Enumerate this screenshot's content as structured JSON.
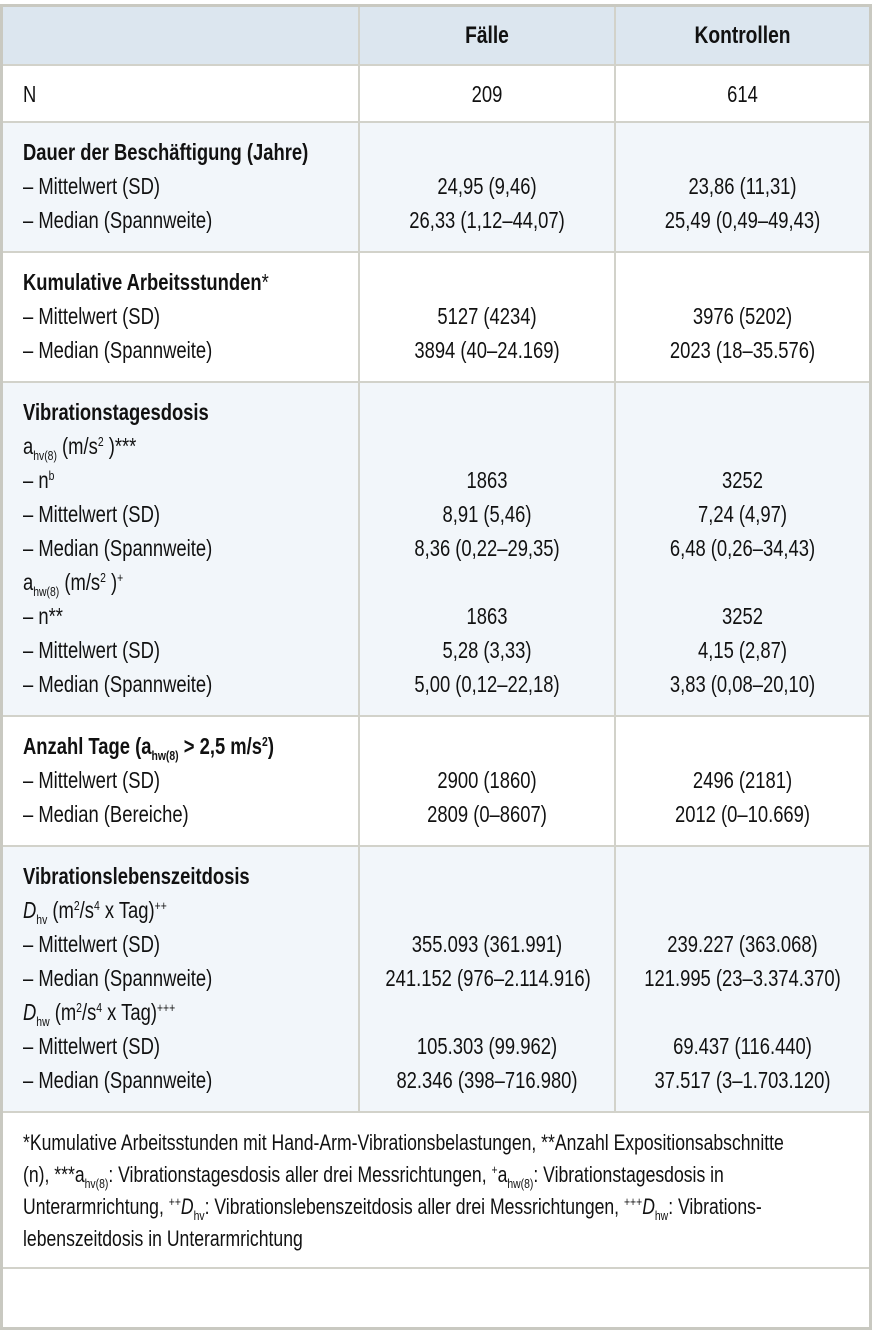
{
  "table": {
    "header": {
      "col_label": "",
      "col_cases": "Fälle",
      "col_controls": "Kontrollen"
    },
    "n_row": {
      "label": "N",
      "cases": "209",
      "controls": "614"
    },
    "sections": {
      "duration": {
        "title": "Dauer der Beschäftigung (Jahre)",
        "rows": [
          {
            "label": "– Mittelwert (SD)",
            "cases": "24,95 (9,46)",
            "controls": "23,86 (11,31)"
          },
          {
            "label": "– Median (Spannweite)",
            "cases": "26,33 (1,12–44,07)",
            "controls": "25,49 (0,49–49,43)"
          }
        ]
      },
      "hours": {
        "title": "Kumulative Arbeitsstunden",
        "title_mark": "*",
        "rows": [
          {
            "label": "– Mittelwert (SD)",
            "cases": "5127 (4234)",
            "controls": "3976 (5202)"
          },
          {
            "label": "– Median (Spannweite)",
            "cases": "3894 (40–24.169)",
            "controls": "2023 (18–35.576)"
          }
        ]
      },
      "daily_dose": {
        "title": "Vibrationstagesdosis",
        "ahv": {
          "symbol": "a",
          "sub": "hv(8)",
          "unit_pre": " (m/s",
          "unit_sup": "2",
          "unit_post": " )***",
          "rows": [
            {
              "label": "– n",
              "label_sup": "b",
              "cases": "1863",
              "controls": "3252"
            },
            {
              "label": "– Mittelwert (SD)",
              "cases": "8,91 (5,46)",
              "controls": "7,24 (4,97)"
            },
            {
              "label": "– Median (Spannweite)",
              "cases": "8,36 (0,22–29,35)",
              "controls": "6,48 (0,26–34,43)"
            }
          ]
        },
        "ahw": {
          "symbol": "a",
          "sub": "hw(8)",
          "unit_pre": " (m/s",
          "unit_sup": "2",
          "unit_post": " )",
          "unit_mark": "+",
          "rows": [
            {
              "label": "– n**",
              "cases": "1863",
              "controls": "3252"
            },
            {
              "label": "– Mittelwert (SD)",
              "cases": "5,28 (3,33)",
              "controls": "4,15 (2,87)"
            },
            {
              "label": "– Median (Spannweite)",
              "cases": "5,00 (0,12–22,18)",
              "controls": "3,83 (0,08–20,10)"
            }
          ]
        }
      },
      "days": {
        "title_pre": "Anzahl Tage (a",
        "title_sub": "hw(8)",
        "title_mid": " > 2,5 m/s",
        "title_sup": "2",
        "title_post": ")",
        "rows": [
          {
            "label": "– Mittelwert (SD)",
            "cases": "2900 (1860)",
            "controls": "2496 (2181)"
          },
          {
            "label": "– Median (Bereiche)",
            "cases": "2809 (0–8607)",
            "controls": "2012 (0–10.669)"
          }
        ]
      },
      "lifetime_dose": {
        "title": "Vibrationslebenszeitdosis",
        "dhv": {
          "symbol": "D",
          "sub": "hv",
          "unit_pre": " (m",
          "unit_sup1": "2",
          "unit_mid": "/s",
          "unit_sup2": "4",
          "unit_post": " x Tag)",
          "unit_mark": "++",
          "rows": [
            {
              "label": "– Mittelwert (SD)",
              "cases": "355.093 (361.991)",
              "controls": "239.227 (363.068)"
            },
            {
              "label": "– Median (Spannweite)",
              "cases": "241.152 (976–2.114.916)",
              "controls": "121.995 (23–3.374.370)"
            }
          ]
        },
        "dhw": {
          "symbol": "D",
          "sub": "hw",
          "unit_pre": " (m",
          "unit_sup1": "2",
          "unit_mid": "/s",
          "unit_sup2": "4",
          "unit_post": " x Tag)",
          "unit_mark": "+++",
          "rows": [
            {
              "label": "– Mittelwert (SD)",
              "cases": "105.303 (99.962)",
              "controls": "69.437 (116.440)"
            },
            {
              "label": "– Median (Spannweite)",
              "cases": "82.346 (398–716.980)",
              "controls": "37.517 (3–1.703.120)"
            }
          ]
        }
      }
    },
    "footnote": {
      "line1": "*Kumulative Arbeitsstunden mit Hand-Arm-Vibrationsbelastungen, **Anzahl Expositionsabschnitte",
      "line2_a": "(n), ***a",
      "line2_sub1": "hv(8)",
      "line2_b": ": Vibrationstagesdosis aller drei Messrichtungen, ",
      "line2_sup": "+",
      "line2_c": "a",
      "line2_sub2": "hw(8)",
      "line2_d": ": Vibrationstagesdosis in",
      "line3_a": "Unterarmrichtung, ",
      "line3_sup1": "++",
      "line3_D1": "D",
      "line3_sub1": "hv",
      "line3_b": ": Vibrationslebenszeitdosis aller drei Messrichtungen, ",
      "line3_sup2": "+++",
      "line3_D2": "D",
      "line3_sub2": "hw",
      "line3_c": ": Vibrations-",
      "line4": "lebenszeitdosis in Unterarmrichtung"
    },
    "colors": {
      "header_bg": "#dce6ef",
      "shaded_bg": "#f2f6fa",
      "border": "#d2d2ca",
      "frame": "#c9c9c1"
    }
  }
}
